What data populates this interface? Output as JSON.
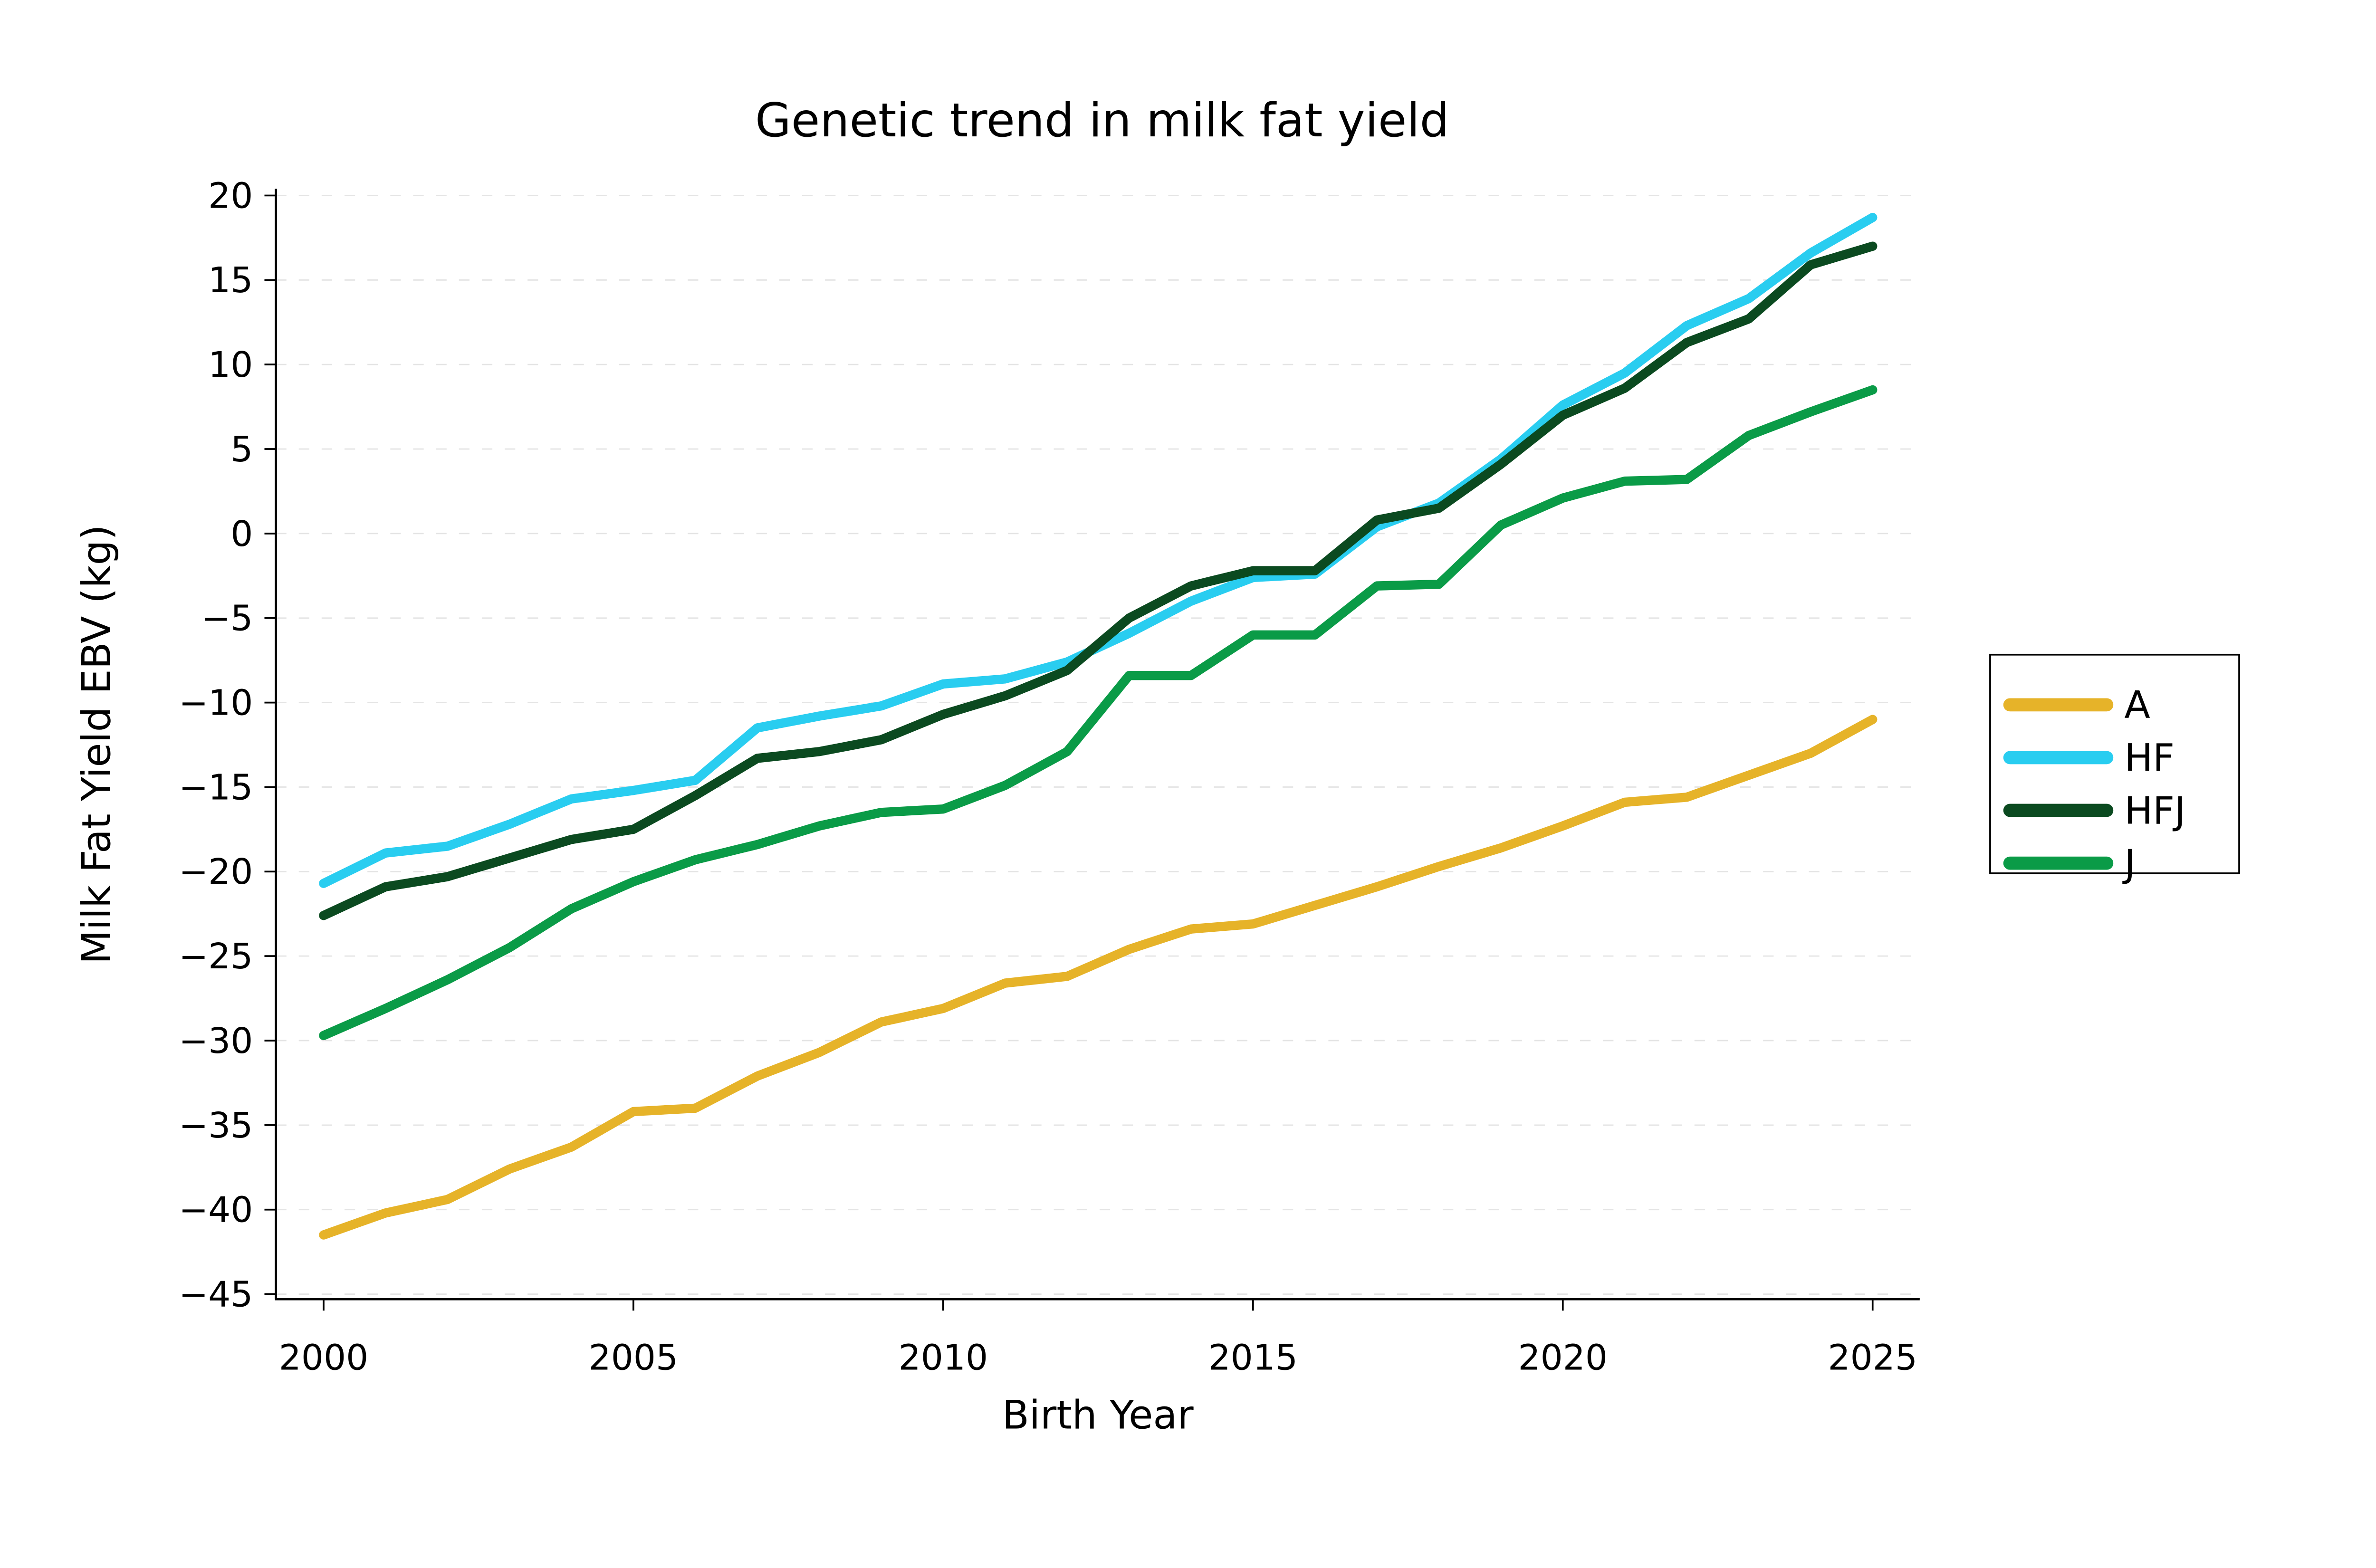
{
  "title": "Genetic trend in milk fat yield",
  "chart_data": {
    "type": "line",
    "title": "Genetic trend in milk fat yield",
    "xlabel": "Birth Year",
    "ylabel": "Milk Fat Yield EBV (kg)",
    "x": [
      2000,
      2001,
      2002,
      2003,
      2004,
      2005,
      2006,
      2007,
      2008,
      2009,
      2010,
      2011,
      2012,
      2013,
      2014,
      2015,
      2016,
      2017,
      2018,
      2019,
      2020,
      2021,
      2022,
      2023,
      2024,
      2025
    ],
    "series": [
      {
        "name": "A",
        "color": "#e6b329",
        "values": [
          -41.5,
          -40.2,
          -39.4,
          -37.6,
          -36.3,
          -34.2,
          -34.0,
          -32.1,
          -30.7,
          -28.9,
          -28.1,
          -26.6,
          -26.2,
          -24.6,
          -23.4,
          -23.1,
          -22.0,
          -20.9,
          -19.7,
          -18.6,
          -17.3,
          -15.9,
          -15.6,
          -14.3,
          -13.0,
          -11.0
        ]
      },
      {
        "name": "HF",
        "color": "#29cdf0",
        "values": [
          -20.7,
          -18.9,
          -18.5,
          -17.2,
          -15.7,
          -15.2,
          -14.6,
          -11.5,
          -10.8,
          -10.2,
          -8.9,
          -8.6,
          -7.6,
          -5.9,
          -4.0,
          -2.6,
          -2.4,
          0.4,
          1.8,
          4.4,
          7.6,
          9.5,
          12.3,
          13.9,
          16.6,
          18.7
        ]
      },
      {
        "name": "HFJ",
        "color": "#0b4a20",
        "values": [
          -22.6,
          -20.9,
          -20.3,
          -19.2,
          -18.1,
          -17.5,
          -15.5,
          -13.3,
          -12.9,
          -12.2,
          -10.7,
          -9.6,
          -8.1,
          -5.0,
          -3.1,
          -2.2,
          -2.2,
          0.8,
          1.5,
          4.1,
          7.0,
          8.6,
          11.3,
          12.7,
          15.9,
          17.0
        ]
      },
      {
        "name": "J",
        "color": "#0a9b47",
        "values": [
          -29.7,
          -28.1,
          -26.4,
          -24.5,
          -22.2,
          -20.6,
          -19.3,
          -18.4,
          -17.3,
          -16.5,
          -16.3,
          -14.9,
          -12.9,
          -8.4,
          -8.4,
          -6.0,
          -6.0,
          -3.1,
          -3.0,
          0.5,
          2.1,
          3.1,
          3.2,
          5.8,
          7.2,
          8.5
        ]
      }
    ],
    "xticks": [
      2000,
      2005,
      2010,
      2015,
      2020,
      2025
    ],
    "yticks": [
      20,
      15,
      10,
      5,
      0,
      -5,
      -10,
      -15,
      -20,
      -25,
      -30,
      -35,
      -40,
      -45
    ],
    "xlim": [
      1999.23,
      2025.76
    ],
    "ylim": [
      -45.3,
      20.4
    ],
    "grid": "horizontal-dashed",
    "grid_color": "#e4e4e4",
    "axis_color": "#000000",
    "background": "#ffffff",
    "legend_position": "center-right",
    "legend_labels": [
      "A",
      "HF",
      "HFJ",
      "J"
    ]
  }
}
